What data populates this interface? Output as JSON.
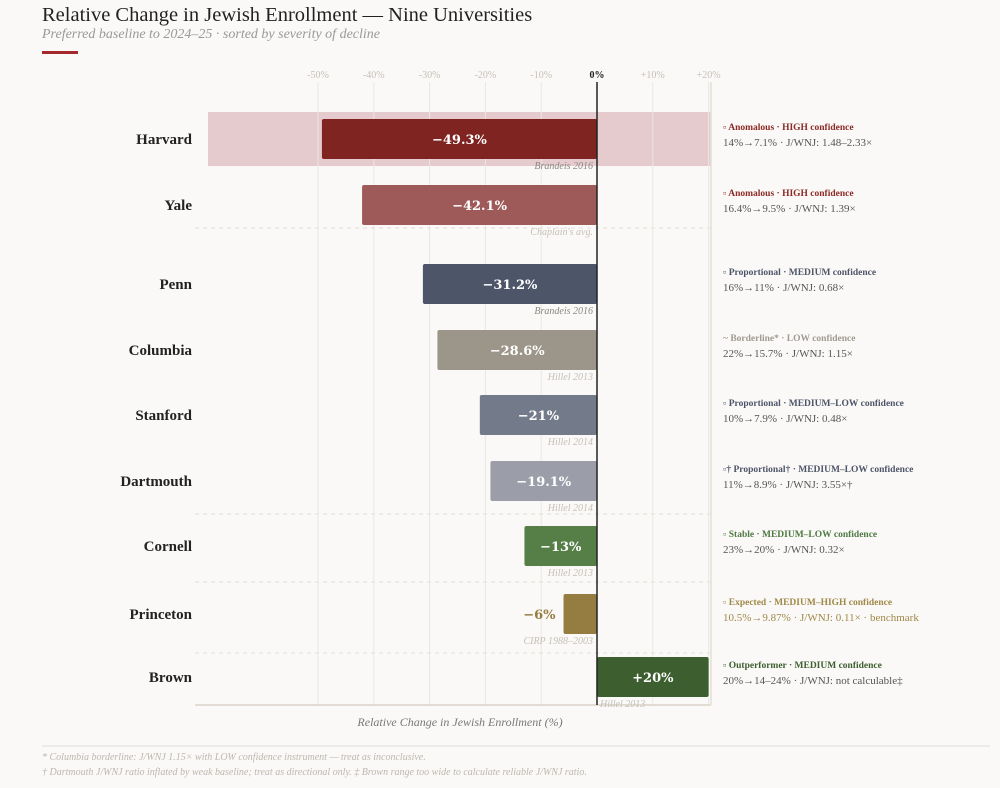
{
  "title": "Relative Change in Jewish Enrollment — Nine Universities",
  "subtitle": "Preferred baseline to 2024–25 · sorted by severity of decline",
  "accent_color": "#a5282a",
  "chart_data": {
    "type": "bar",
    "orientation": "horizontal",
    "xlabel": "Relative Change in Jewish Enrollment (%)",
    "xlim": [
      -50,
      20
    ],
    "xticks": [
      "-50%",
      "-40%",
      "-30%",
      "-20%",
      "-10%",
      "0%",
      "+10%",
      "+20%"
    ],
    "xtick_values": [
      -50,
      -40,
      -30,
      -20,
      -10,
      0,
      10,
      20
    ],
    "grid": true,
    "categories": [
      "Harvard",
      "Yale",
      "Penn",
      "Columbia",
      "Stanford",
      "Dartmouth",
      "Cornell",
      "Princeton",
      "Brown"
    ],
    "values": [
      -49.3,
      -42.1,
      -31.2,
      -28.6,
      -21,
      -19.1,
      -13,
      -6,
      20
    ],
    "value_labels": [
      "−49.3%",
      "−42.1%",
      "−31.2%",
      "−28.6%",
      "−21%",
      "−19.1%",
      "−13%",
      "−6%",
      "+20%"
    ],
    "sources": [
      "Brandeis 2016",
      "Chaplain's avg.",
      "Brandeis 2016",
      "Hillel 2013",
      "Hillel 2014",
      "Hillel 2014",
      "Hillel 2013",
      "CIRP 1988–2003",
      "Hillel 2013"
    ],
    "colors": [
      "#7f2420",
      "#9e5a58",
      "#4d5568",
      "#9c9589",
      "#737a8a",
      "#9b9ea9",
      "#567f48",
      "#957d42",
      "#3d5e2e"
    ],
    "highlight_category": "Harvard",
    "annotations": [
      {
        "status": "▫ Anomalous · HIGH confidence",
        "detail": "14%→7.1% · J/WNJ: 1.48–2.33×",
        "color": "#8b2a26"
      },
      {
        "status": "▫ Anomalous · HIGH confidence",
        "detail": "16.4%→9.5% · J/WNJ: 1.39×",
        "color": "#8b2a26"
      },
      {
        "status": "▫ Proportional · MEDIUM confidence",
        "detail": "16%→11% · J/WNJ: 0.68×",
        "color": "#4d5568"
      },
      {
        "status": "~ Borderline* · LOW confidence",
        "detail": "22%→15.7% · J/WNJ: 1.15×",
        "color": "#a09a8f"
      },
      {
        "status": "▫ Proportional · MEDIUM–LOW confidence",
        "detail": "10%→7.9% · J/WNJ: 0.48×",
        "color": "#4d5568"
      },
      {
        "status": "▫† Proportional† · MEDIUM–LOW confidence",
        "detail": "11%→8.9% · J/WNJ: 3.55×†",
        "color": "#4d5568"
      },
      {
        "status": "▫ Stable · MEDIUM–LOW confidence",
        "detail": "23%→20% · J/WNJ: 0.32×",
        "color": "#4f7a43"
      },
      {
        "status": "▫ Expected · MEDIUM–HIGH confidence",
        "detail": "10.5%→9.87% · J/WNJ: 0.11× · benchmark",
        "color": "#a08848"
      },
      {
        "status": "▫ Outperformer · MEDIUM confidence",
        "detail": "20%→14–24% · J/WNJ: not calculable‡",
        "color": "#3d5e2e"
      }
    ]
  },
  "footnotes": [
    "* Columbia borderline: J/WNJ 1.15× with LOW confidence instrument — treat as inconclusive.",
    "† Dartmouth J/WNJ ratio inflated by weak baseline; treat as directional only. ‡ Brown range too wide to calculate reliable J/WNJ ratio."
  ]
}
